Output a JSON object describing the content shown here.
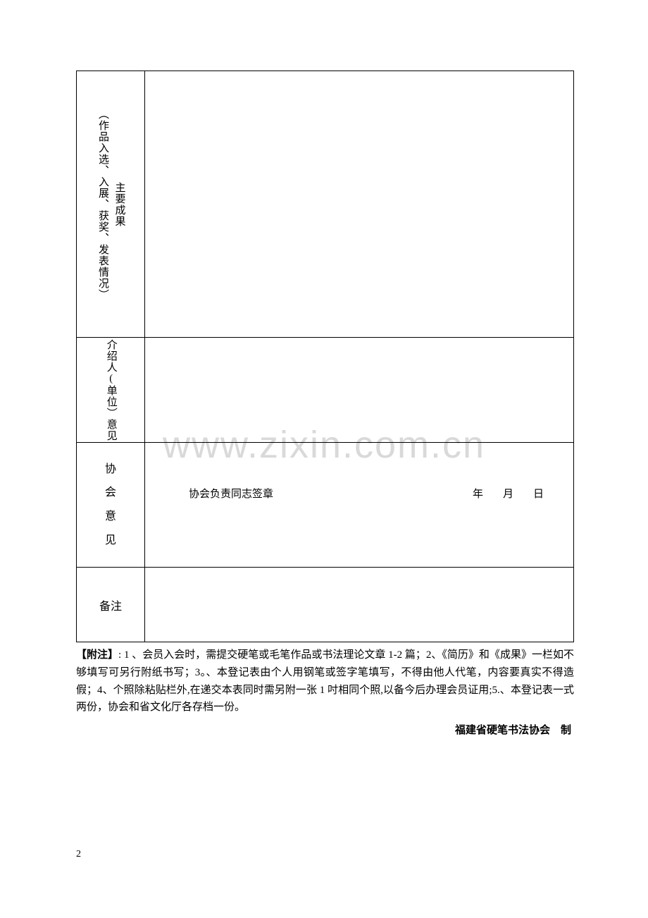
{
  "table": {
    "row1": {
      "label_main": "主要成果",
      "label_sub": "（作品入选、入展、获奖、发表情况）",
      "content": ""
    },
    "row2": {
      "label": "介绍人(单位）意见",
      "content": ""
    },
    "row3": {
      "label_c1": "协",
      "label_c2": "会",
      "label_c3": "意",
      "label_c4": "见",
      "sig_lead": "协会负责同志签章",
      "sig_y": "年",
      "sig_m": "月",
      "sig_d": "日"
    },
    "row4": {
      "label": "备注",
      "content": ""
    }
  },
  "notes": {
    "lead": "【附注】",
    "body": ": 1 、会员入会时，需提交硬笔或毛笔作品或书法理论文章 1-2 篇；2、《简历》和《成果》一栏如不够填写可另行附纸书写；3。、本登记表由个人用钢笔或签字笔填写，不得由他人代笔，内容要真实不得造假；4、个照除粘贴栏外,在递交本表同时需另附一张 1 吋相同个照,以备今后办理会员证用;5.、本登记表一式两份，协会和省文化厅各存档一份。"
  },
  "issuer": "福建省硬笔书法协会　制",
  "watermark": "www.zixin.com.cn",
  "page_number": "2"
}
